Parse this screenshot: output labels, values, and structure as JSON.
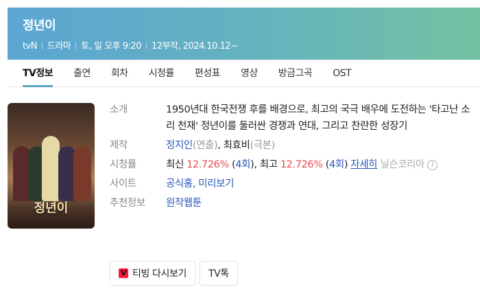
{
  "header": {
    "title": "정년이",
    "meta": [
      "tvN",
      "드라마",
      "토, 일 오후 9:20",
      "12부작, 2024.10.12~"
    ]
  },
  "tabs": [
    {
      "label": "TV정보",
      "active": true
    },
    {
      "label": "출연"
    },
    {
      "label": "회차"
    },
    {
      "label": "시청률"
    },
    {
      "label": "편성표"
    },
    {
      "label": "영상"
    },
    {
      "label": "방금그곡"
    },
    {
      "label": "OST"
    }
  ],
  "poster": {
    "title": "정년이"
  },
  "info": {
    "intro_label": "소개",
    "intro": "1950년대 한국전쟁 후를 배경으로, 최고의 국극 배우에 도전하는 '타고난 소리 천재' 정년이를 둘러싼 경쟁과 연대, 그리고 찬란한 성장기",
    "production_label": "제작",
    "director": "정지인",
    "director_role": "(연출)",
    "writer": "최효비",
    "writer_role": "(극본)",
    "rating_label": "시청률",
    "latest_label": "최신",
    "latest_value": "12.726%",
    "latest_ep": "4회",
    "best_label": "최고",
    "best_value": "12.726%",
    "best_ep": "4회",
    "details_link": "자세히",
    "source": "닐슨코리아",
    "site_label": "사이트",
    "site_links": [
      "공식홈",
      "미리보기"
    ],
    "recommend_label": "추천정보",
    "recommend_link": "원작웹툰"
  },
  "buttons": {
    "tving": "티빙 다시보기",
    "tving_icon": "V",
    "tvtalk": "TV톡"
  },
  "colors": {
    "accent": "#2a57b8",
    "rating": "#e5484d",
    "tving": "#ff153c"
  }
}
